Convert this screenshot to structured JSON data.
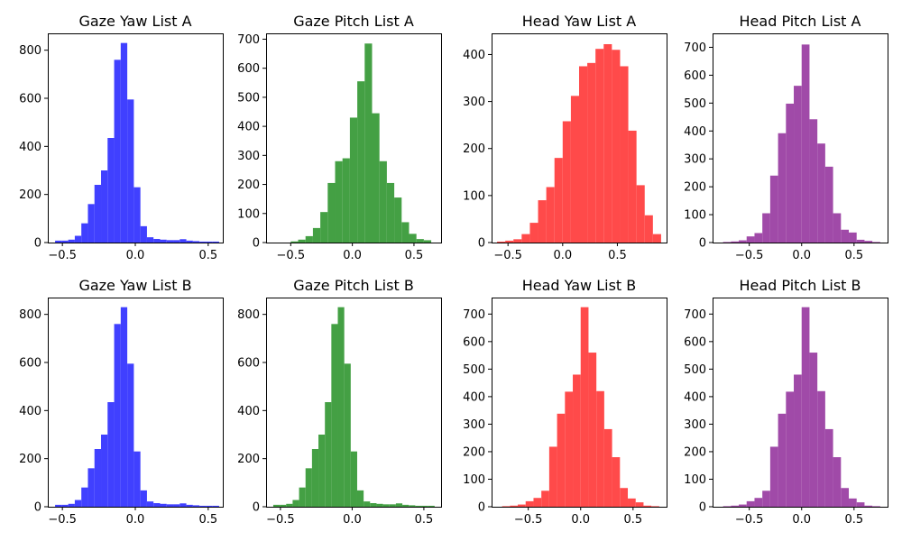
{
  "figure": {
    "background": "#ffffff"
  },
  "chart_data": [
    {
      "type": "bar",
      "title": "Gaze Yaw List A",
      "color": "#4040ff",
      "xlim": [
        -0.6,
        0.6
      ],
      "ylim": [
        0,
        870
      ],
      "xticks": [
        -0.5,
        0.0,
        0.5
      ],
      "xtick_labels": [
        "−0.5",
        "0.0",
        "0.5"
      ],
      "yticks": [
        0,
        200,
        400,
        600,
        800
      ],
      "ytick_labels": [
        "0",
        "200",
        "400",
        "600",
        "800"
      ],
      "bin_edges": [
        -0.55,
        -0.505,
        -0.46,
        -0.415,
        -0.37,
        -0.325,
        -0.28,
        -0.235,
        -0.19,
        -0.145,
        -0.1,
        -0.055,
        -0.01,
        0.035,
        0.08,
        0.125,
        0.17,
        0.215,
        0.26,
        0.305,
        0.35,
        0.395,
        0.44,
        0.485,
        0.53,
        0.575
      ],
      "values": [
        8,
        8,
        12,
        28,
        80,
        160,
        240,
        300,
        435,
        760,
        830,
        595,
        230,
        68,
        22,
        15,
        12,
        10,
        10,
        14,
        8,
        6,
        4,
        4,
        4
      ]
    },
    {
      "type": "bar",
      "title": "Gaze Pitch List A",
      "color": "#44a044",
      "xlim": [
        -0.7,
        0.72
      ],
      "ylim": [
        0,
        720
      ],
      "xticks": [
        -0.5,
        0.0,
        0.5
      ],
      "xtick_labels": [
        "−0.5",
        "0.0",
        "0.5"
      ],
      "yticks": [
        0,
        100,
        200,
        300,
        400,
        500,
        600,
        700
      ],
      "ytick_labels": [
        "0",
        "100",
        "200",
        "300",
        "400",
        "500",
        "600",
        "700"
      ],
      "bin_edges": [
        -0.5,
        -0.44,
        -0.38,
        -0.32,
        -0.26,
        -0.2,
        -0.14,
        -0.08,
        -0.02,
        0.04,
        0.1,
        0.16,
        0.22,
        0.28,
        0.34,
        0.4,
        0.46,
        0.52,
        0.58,
        0.64
      ],
      "values": [
        4,
        10,
        22,
        50,
        105,
        205,
        280,
        290,
        430,
        555,
        685,
        445,
        280,
        205,
        155,
        70,
        30,
        12,
        8
      ]
    },
    {
      "type": "bar",
      "title": "Head Yaw List A",
      "color": "#ff4a4a",
      "xlim": [
        -0.65,
        0.95
      ],
      "ylim": [
        0,
        445
      ],
      "xticks": [
        -0.5,
        0.0,
        0.5
      ],
      "xtick_labels": [
        "−0.5",
        "0.0",
        "0.5"
      ],
      "yticks": [
        0,
        100,
        200,
        300,
        400
      ],
      "ytick_labels": [
        "0",
        "100",
        "200",
        "300",
        "400"
      ],
      "bin_edges": [
        -0.6,
        -0.525,
        -0.45,
        -0.375,
        -0.3,
        -0.225,
        -0.15,
        -0.075,
        0.0,
        0.075,
        0.15,
        0.225,
        0.3,
        0.375,
        0.45,
        0.525,
        0.6,
        0.675,
        0.75,
        0.825,
        0.9
      ],
      "values": [
        2,
        4,
        7,
        18,
        42,
        90,
        118,
        180,
        258,
        312,
        375,
        382,
        412,
        422,
        410,
        375,
        238,
        122,
        58,
        18
      ]
    },
    {
      "type": "bar",
      "title": "Head Pitch List A",
      "color": "#a04aa8",
      "xlim": [
        -0.85,
        0.82
      ],
      "ylim": [
        0,
        750
      ],
      "xticks": [
        -0.5,
        0.0,
        0.5
      ],
      "xtick_labels": [
        "−0.5",
        "0.0",
        "0.5"
      ],
      "yticks": [
        0,
        100,
        200,
        300,
        400,
        500,
        600,
        700
      ],
      "ytick_labels": [
        "0",
        "100",
        "200",
        "300",
        "400",
        "500",
        "600",
        "700"
      ],
      "bin_edges": [
        -0.75,
        -0.675,
        -0.6,
        -0.525,
        -0.45,
        -0.375,
        -0.3,
        -0.225,
        -0.15,
        -0.075,
        0.0,
        0.075,
        0.15,
        0.225,
        0.3,
        0.375,
        0.45,
        0.525,
        0.6,
        0.675,
        0.75
      ],
      "values": [
        2,
        4,
        8,
        22,
        34,
        105,
        240,
        392,
        498,
        562,
        710,
        442,
        355,
        272,
        105,
        46,
        36,
        10,
        6,
        2
      ]
    },
    {
      "type": "bar",
      "title": "Gaze Yaw List B",
      "color": "#4040ff",
      "xlim": [
        -0.6,
        0.6
      ],
      "ylim": [
        0,
        870
      ],
      "xticks": [
        -0.5,
        0.0,
        0.5
      ],
      "xtick_labels": [
        "−0.5",
        "0.0",
        "0.5"
      ],
      "yticks": [
        0,
        200,
        400,
        600,
        800
      ],
      "ytick_labels": [
        "0",
        "200",
        "400",
        "600",
        "800"
      ],
      "bin_edges": [
        -0.55,
        -0.505,
        -0.46,
        -0.415,
        -0.37,
        -0.325,
        -0.28,
        -0.235,
        -0.19,
        -0.145,
        -0.1,
        -0.055,
        -0.01,
        0.035,
        0.08,
        0.125,
        0.17,
        0.215,
        0.26,
        0.305,
        0.35,
        0.395,
        0.44,
        0.485,
        0.53,
        0.575
      ],
      "values": [
        8,
        8,
        12,
        28,
        80,
        160,
        240,
        300,
        435,
        760,
        830,
        595,
        230,
        68,
        22,
        15,
        12,
        10,
        10,
        14,
        8,
        6,
        4,
        4,
        4
      ]
    },
    {
      "type": "bar",
      "title": "Gaze Pitch List B",
      "color": "#44a044",
      "xlim": [
        -0.6,
        0.62
      ],
      "ylim": [
        0,
        870
      ],
      "xticks": [
        -0.5,
        0.0,
        0.5
      ],
      "xtick_labels": [
        "−0.5",
        "0.0",
        "0.5"
      ],
      "yticks": [
        0,
        200,
        400,
        600,
        800
      ],
      "ytick_labels": [
        "0",
        "200",
        "400",
        "600",
        "800"
      ],
      "bin_edges": [
        -0.55,
        -0.505,
        -0.46,
        -0.415,
        -0.37,
        -0.325,
        -0.28,
        -0.235,
        -0.19,
        -0.145,
        -0.1,
        -0.055,
        -0.01,
        0.035,
        0.08,
        0.125,
        0.17,
        0.215,
        0.26,
        0.305,
        0.35,
        0.395,
        0.44,
        0.485,
        0.53,
        0.575
      ],
      "values": [
        8,
        8,
        12,
        28,
        80,
        160,
        240,
        300,
        435,
        760,
        830,
        595,
        230,
        68,
        22,
        15,
        12,
        10,
        10,
        14,
        8,
        6,
        4,
        4,
        4
      ]
    },
    {
      "type": "bar",
      "title": "Head Yaw List B",
      "color": "#ff4a4a",
      "xlim": [
        -0.85,
        0.82
      ],
      "ylim": [
        0,
        760
      ],
      "xticks": [
        -0.5,
        0.0,
        0.5
      ],
      "xtick_labels": [
        "−0.5",
        "0.0",
        "0.5"
      ],
      "yticks": [
        0,
        100,
        200,
        300,
        400,
        500,
        600,
        700
      ],
      "ytick_labels": [
        "0",
        "100",
        "200",
        "300",
        "400",
        "500",
        "600",
        "700"
      ],
      "bin_edges": [
        -0.75,
        -0.675,
        -0.6,
        -0.525,
        -0.45,
        -0.375,
        -0.3,
        -0.225,
        -0.15,
        -0.075,
        0.0,
        0.075,
        0.15,
        0.225,
        0.3,
        0.375,
        0.45,
        0.525,
        0.6,
        0.675,
        0.75
      ],
      "values": [
        2,
        4,
        8,
        20,
        32,
        58,
        218,
        338,
        418,
        480,
        725,
        560,
        420,
        282,
        180,
        68,
        30,
        16,
        4,
        2
      ]
    },
    {
      "type": "bar",
      "title": "Head Pitch List B",
      "color": "#a04aa8",
      "xlim": [
        -0.85,
        0.82
      ],
      "ylim": [
        0,
        760
      ],
      "xticks": [
        -0.5,
        0.0,
        0.5
      ],
      "xtick_labels": [
        "−0.5",
        "0.0",
        "0.5"
      ],
      "yticks": [
        0,
        100,
        200,
        300,
        400,
        500,
        600,
        700
      ],
      "ytick_labels": [
        "0",
        "100",
        "200",
        "300",
        "400",
        "500",
        "600",
        "700"
      ],
      "bin_edges": [
        -0.75,
        -0.675,
        -0.6,
        -0.525,
        -0.45,
        -0.375,
        -0.3,
        -0.225,
        -0.15,
        -0.075,
        0.0,
        0.075,
        0.15,
        0.225,
        0.3,
        0.375,
        0.45,
        0.525,
        0.6,
        0.675,
        0.75
      ],
      "values": [
        2,
        4,
        8,
        20,
        32,
        58,
        218,
        338,
        418,
        480,
        725,
        560,
        420,
        282,
        180,
        68,
        30,
        16,
        4,
        2
      ]
    }
  ]
}
